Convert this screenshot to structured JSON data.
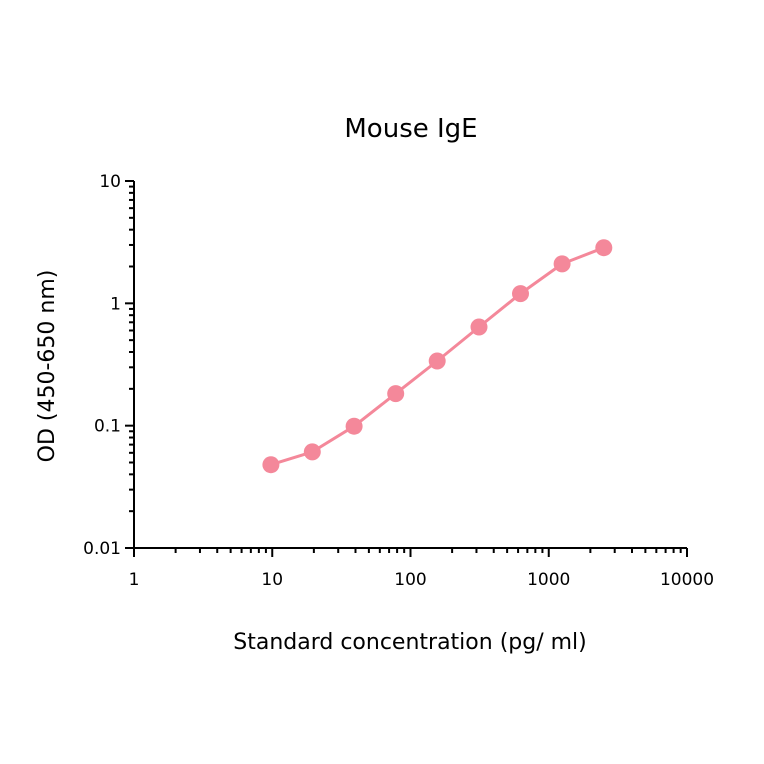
{
  "chart_data": {
    "type": "line",
    "title": "Mouse IgE",
    "xlabel": "Standard concentration (pg/ ml)",
    "ylabel": "OD (450-650 nm)",
    "x_scale": "log",
    "y_scale": "log",
    "xlim": [
      1,
      10000
    ],
    "ylim": [
      0.01,
      10
    ],
    "x_ticks": [
      1,
      10,
      100,
      1000,
      10000
    ],
    "x_tick_labels": [
      "1",
      "10",
      "100",
      "1000",
      "10000"
    ],
    "y_ticks": [
      0.01,
      0.1,
      1,
      10
    ],
    "y_tick_labels": [
      "0.01",
      "0.1",
      "1",
      "10"
    ],
    "grid": false,
    "series": [
      {
        "color": "#f4889a",
        "x": [
          9.77,
          19.5,
          39.1,
          78.1,
          156,
          313,
          625,
          1250,
          2500
        ],
        "y": [
          0.048,
          0.061,
          0.099,
          0.183,
          0.338,
          0.64,
          1.2,
          2.1,
          2.85
        ]
      }
    ]
  }
}
